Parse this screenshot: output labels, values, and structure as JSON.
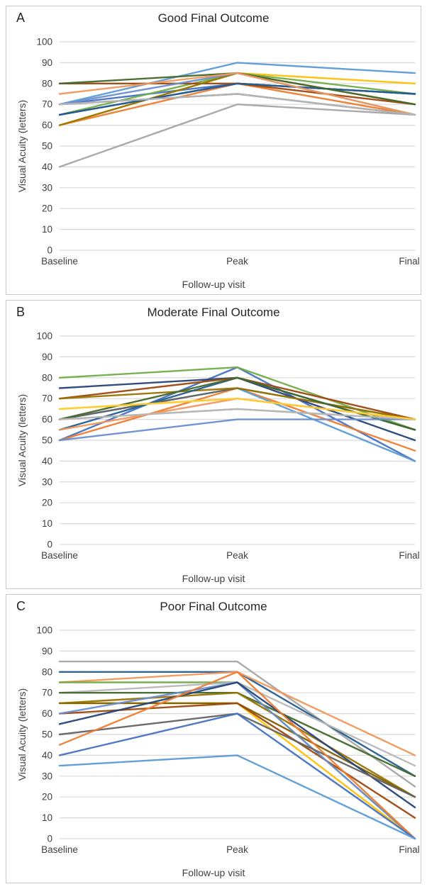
{
  "figure": {
    "ylabel": "Visual Acuity (letters)",
    "xlabel": "Follow-up visit",
    "grid_color": "#d9d9d9",
    "text_color": "#404040"
  },
  "chart_data": [
    {
      "type": "line",
      "panel_label": "A",
      "title": "Good Final Outcome",
      "xlabel": "Follow-up visit",
      "ylabel": "Visual Acuity (letters)",
      "categories": [
        "Baseline",
        "Peak",
        "Final"
      ],
      "y_ticks": [
        100,
        90,
        80,
        70,
        60,
        50,
        40,
        30,
        20,
        10,
        0
      ],
      "ylim": [
        0,
        100
      ],
      "grid": true,
      "legend": false,
      "series": [
        {
          "color": "#4472C4",
          "values": [
            70,
            80,
            75
          ]
        },
        {
          "color": "#ED7D31",
          "values": [
            60,
            80,
            65
          ]
        },
        {
          "color": "#A5A5A5",
          "values": [
            40,
            70,
            65
          ]
        },
        {
          "color": "#FFC000",
          "values": [
            60,
            85,
            80
          ]
        },
        {
          "color": "#5B9BD5",
          "values": [
            70,
            90,
            85
          ]
        },
        {
          "color": "#70AD47",
          "values": [
            65,
            85,
            75
          ]
        },
        {
          "color": "#264478",
          "values": [
            65,
            80,
            75
          ]
        },
        {
          "color": "#9E480E",
          "values": [
            80,
            80,
            70
          ]
        },
        {
          "color": "#636363",
          "values": [
            70,
            75,
            65
          ]
        },
        {
          "color": "#997300",
          "values": [
            60,
            85,
            70
          ]
        },
        {
          "color": "#255E91",
          "values": [
            65,
            80,
            75
          ]
        },
        {
          "color": "#43682B",
          "values": [
            80,
            85,
            70
          ]
        },
        {
          "color": "#698ED0",
          "values": [
            70,
            85,
            65
          ]
        },
        {
          "color": "#F1975A",
          "values": [
            75,
            85,
            65
          ]
        },
        {
          "color": "#B7B7B7",
          "values": [
            70,
            75,
            65
          ]
        }
      ]
    },
    {
      "type": "line",
      "panel_label": "B",
      "title": "Moderate Final Outcome",
      "xlabel": "Follow-up visit",
      "ylabel": "Visual Acuity (letters)",
      "categories": [
        "Baseline",
        "Peak",
        "Final"
      ],
      "y_ticks": [
        100,
        90,
        80,
        70,
        60,
        50,
        40,
        30,
        20,
        10,
        0
      ],
      "ylim": [
        0,
        100
      ],
      "grid": true,
      "legend": false,
      "series": [
        {
          "color": "#4472C4",
          "values": [
            50,
            85,
            40
          ]
        },
        {
          "color": "#ED7D31",
          "values": [
            50,
            75,
            45
          ]
        },
        {
          "color": "#A5A5A5",
          "values": [
            60,
            65,
            60
          ]
        },
        {
          "color": "#FFC000",
          "values": [
            65,
            70,
            60
          ]
        },
        {
          "color": "#5B9BD5",
          "values": [
            60,
            75,
            40
          ]
        },
        {
          "color": "#70AD47",
          "values": [
            80,
            85,
            55
          ]
        },
        {
          "color": "#264478",
          "values": [
            75,
            80,
            50
          ]
        },
        {
          "color": "#9E480E",
          "values": [
            70,
            80,
            60
          ]
        },
        {
          "color": "#636363",
          "values": [
            60,
            75,
            60
          ]
        },
        {
          "color": "#997300",
          "values": [
            70,
            75,
            60
          ]
        },
        {
          "color": "#255E91",
          "values": [
            55,
            80,
            55
          ]
        },
        {
          "color": "#43682B",
          "values": [
            60,
            80,
            55
          ]
        },
        {
          "color": "#698ED0",
          "values": [
            50,
            60,
            60
          ]
        },
        {
          "color": "#F1975A",
          "values": [
            55,
            70,
            60
          ]
        },
        {
          "color": "#B7B7B7",
          "values": [
            60,
            65,
            60
          ]
        },
        {
          "color": "#FFCD33",
          "values": [
            65,
            70,
            60
          ]
        }
      ]
    },
    {
      "type": "line",
      "panel_label": "C",
      "title": "Poor Final Outcome",
      "xlabel": "Follow-up visit",
      "ylabel": "Visual Acuity (letters)",
      "categories": [
        "Baseline",
        "Peak",
        "Final"
      ],
      "y_ticks": [
        100,
        90,
        80,
        70,
        60,
        50,
        40,
        30,
        20,
        10,
        0
      ],
      "ylim": [
        0,
        100
      ],
      "grid": true,
      "legend": false,
      "series": [
        {
          "color": "#A5A5A5",
          "values": [
            85,
            85,
            25
          ]
        },
        {
          "color": "#255E91",
          "values": [
            80,
            80,
            30
          ]
        },
        {
          "color": "#F1975A",
          "values": [
            75,
            80,
            40
          ]
        },
        {
          "color": "#70AD47",
          "values": [
            75,
            75,
            0
          ]
        },
        {
          "color": "#B7B7B7",
          "values": [
            70,
            75,
            35
          ]
        },
        {
          "color": "#43682B",
          "values": [
            70,
            70,
            30
          ]
        },
        {
          "color": "#997300",
          "values": [
            65,
            70,
            20
          ]
        },
        {
          "color": "#FFC000",
          "values": [
            65,
            65,
            0
          ]
        },
        {
          "color": "#7F6000",
          "values": [
            65,
            65,
            20
          ]
        },
        {
          "color": "#9E480E",
          "values": [
            60,
            65,
            10
          ]
        },
        {
          "color": "#698ED0",
          "values": [
            60,
            75,
            0
          ]
        },
        {
          "color": "#264478",
          "values": [
            55,
            75,
            15
          ]
        },
        {
          "color": "#636363",
          "values": [
            50,
            60,
            20
          ]
        },
        {
          "color": "#ED7D31",
          "values": [
            45,
            80,
            0
          ]
        },
        {
          "color": "#4472C4",
          "values": [
            40,
            60,
            0
          ]
        },
        {
          "color": "#5B9BD5",
          "values": [
            35,
            40,
            0
          ]
        }
      ]
    }
  ]
}
